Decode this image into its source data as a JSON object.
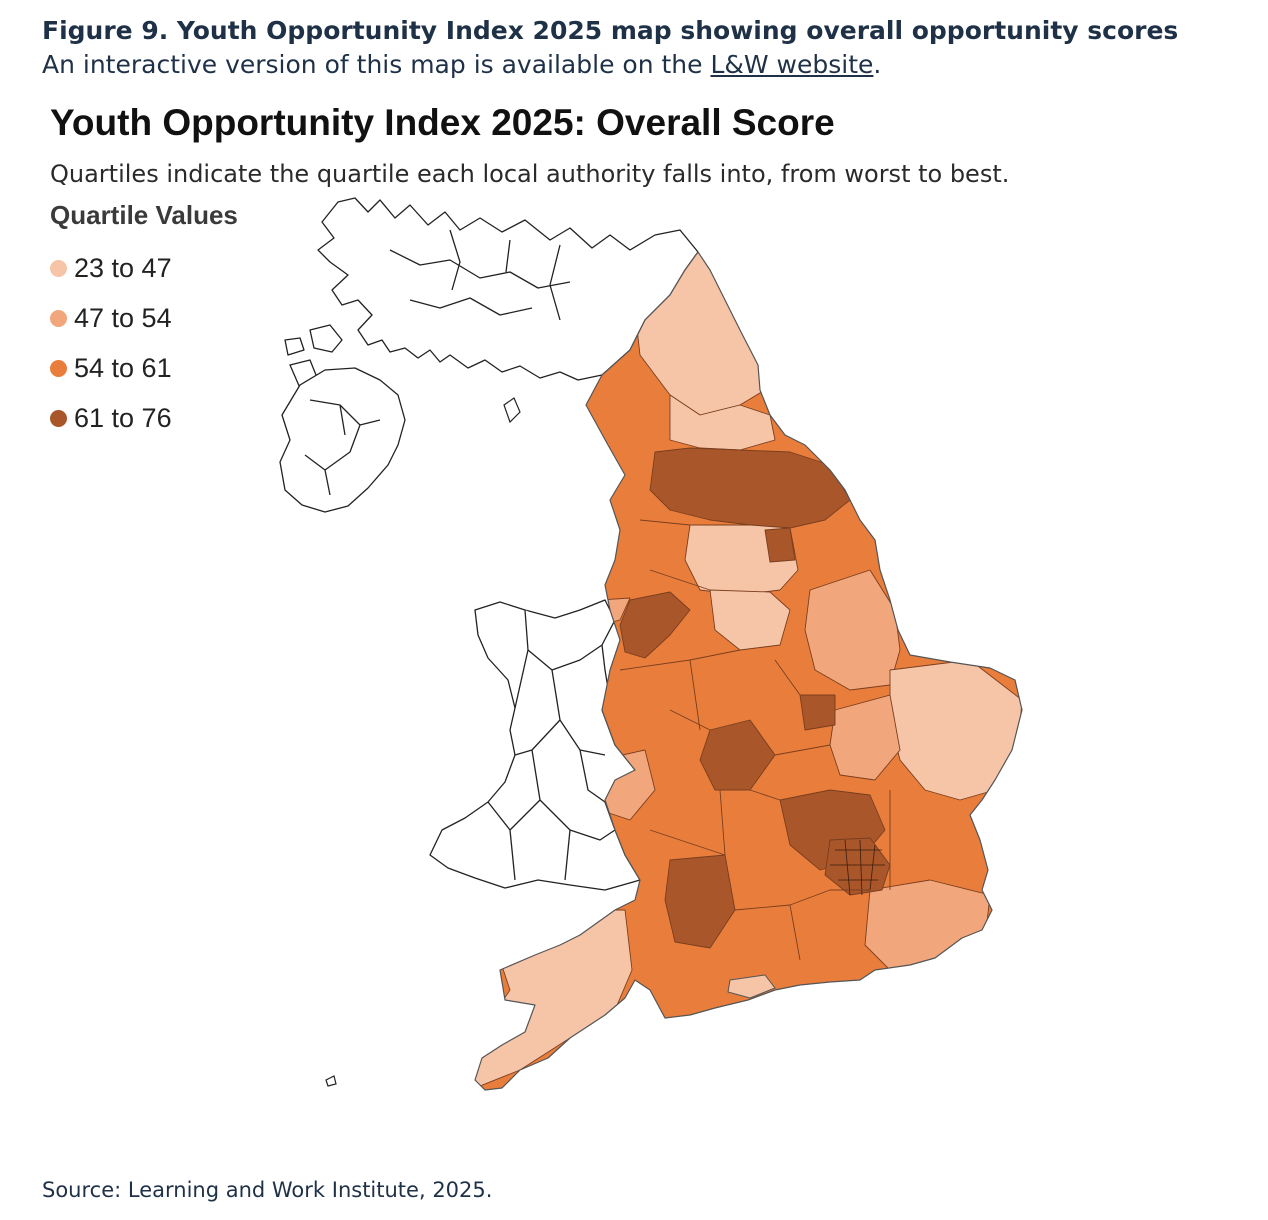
{
  "figure": {
    "heading": "Figure 9. Youth Opportunity Index 2025 map showing overall opportunity scores",
    "subheading_prefix": "An interactive version of this map is available on the ",
    "subheading_link": "L&W website",
    "subheading_suffix": "."
  },
  "map": {
    "title": "Youth Opportunity Index 2025: Overall Score",
    "subtitle": "Quartiles indicate the quartile each local authority falls into, from worst to best."
  },
  "legend": {
    "title": "Quartile Values",
    "items": [
      {
        "label": "23 to 47",
        "color": "#f6c5a8"
      },
      {
        "label": "47 to 54",
        "color": "#f1a67c"
      },
      {
        "label": "54 to 61",
        "color": "#e97e3c"
      },
      {
        "label": "61 to 76",
        "color": "#a8562a"
      }
    ]
  },
  "source": "Source: Learning and Work Institute, 2025."
}
